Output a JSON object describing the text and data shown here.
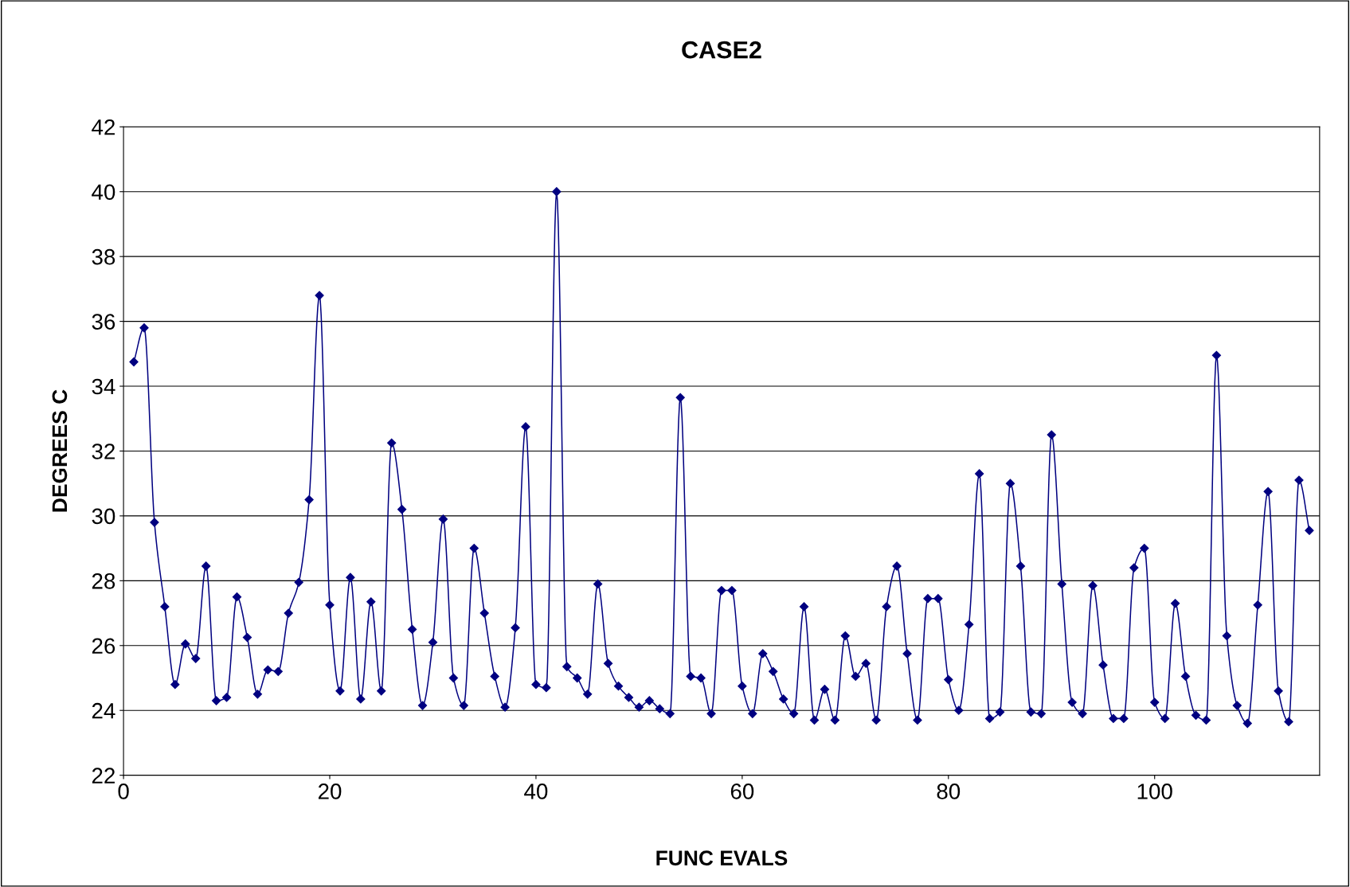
{
  "chart_data": {
    "type": "line",
    "title": "CASE2",
    "xlabel": "FUNC EVALS",
    "ylabel": "DEGREES C",
    "x": [
      1,
      2,
      3,
      4,
      5,
      6,
      7,
      8,
      9,
      10,
      11,
      12,
      13,
      14,
      15,
      16,
      17,
      18,
      19,
      20,
      21,
      22,
      23,
      24,
      25,
      26,
      27,
      28,
      29,
      30,
      31,
      32,
      33,
      34,
      35,
      36,
      37,
      38,
      39,
      40,
      41,
      42,
      43,
      44,
      45,
      46,
      47,
      48,
      49,
      50,
      51,
      52,
      53,
      54,
      55,
      56,
      57,
      58,
      59,
      60,
      61,
      62,
      63,
      64,
      65,
      66,
      67,
      68,
      69,
      70,
      71,
      72,
      73,
      74,
      75,
      76,
      77,
      78,
      79,
      80,
      81,
      82,
      83,
      84,
      85,
      86,
      87,
      88,
      89,
      90,
      91,
      92,
      93,
      94,
      95,
      96,
      97,
      98,
      99,
      100,
      101,
      102,
      103,
      104,
      105,
      106,
      107,
      108,
      109,
      110,
      111,
      112,
      113,
      114,
      115
    ],
    "series": [
      {
        "color": "#000080",
        "values": [
          34.75,
          35.8,
          29.8,
          27.2,
          24.8,
          26.05,
          25.6,
          28.45,
          24.3,
          24.4,
          27.5,
          26.25,
          24.5,
          25.25,
          25.2,
          27.0,
          27.95,
          30.5,
          36.8,
          27.25,
          24.6,
          28.1,
          24.35,
          27.35,
          24.6,
          32.25,
          30.2,
          26.5,
          24.15,
          26.1,
          29.9,
          25.0,
          24.15,
          29.0,
          27.0,
          25.05,
          24.1,
          26.55,
          32.75,
          24.8,
          24.7,
          40.0,
          25.35,
          25.0,
          24.5,
          27.9,
          25.45,
          24.75,
          24.4,
          24.1,
          24.3,
          24.05,
          23.9,
          33.65,
          25.05,
          25.0,
          23.9,
          27.7,
          27.7,
          24.75,
          23.9,
          25.75,
          25.2,
          24.35,
          23.9,
          27.2,
          23.7,
          24.65,
          23.7,
          26.3,
          25.05,
          25.45,
          23.7,
          27.2,
          28.45,
          25.75,
          23.7,
          27.45,
          27.45,
          24.95,
          24.0,
          26.65,
          31.3,
          23.75,
          23.95,
          31.0,
          28.45,
          23.95,
          23.9,
          32.5,
          27.9,
          24.25,
          23.9,
          27.85,
          25.4,
          23.75,
          23.75,
          28.4,
          29.0,
          24.25,
          23.75,
          27.3,
          25.05,
          23.85,
          23.7,
          34.95,
          26.3,
          24.15,
          23.6,
          27.25,
          30.75,
          24.6,
          23.65,
          31.1,
          29.55
        ]
      }
    ],
    "xlim": [
      0,
      116
    ],
    "xticks": [
      0,
      20,
      40,
      60,
      80,
      100
    ],
    "ylim": [
      22,
      42
    ],
    "yticks": [
      22,
      24,
      26,
      28,
      30,
      32,
      34,
      36,
      38,
      40,
      42
    ],
    "grid": "y",
    "marker": "diamond",
    "line_style": "solid",
    "legend": false
  }
}
